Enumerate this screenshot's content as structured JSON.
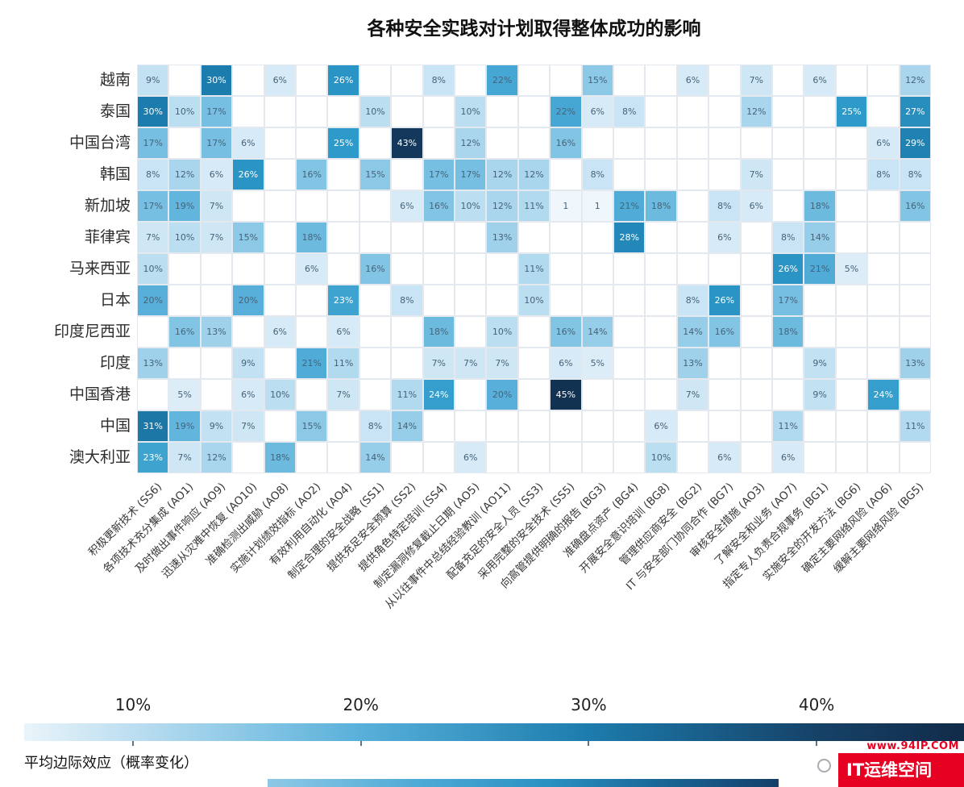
{
  "chart_data": {
    "type": "heatmap",
    "title": "各种安全实践对计划取得整体成功的影响",
    "rows": [
      "越南",
      "泰国",
      "中国台湾",
      "韩国",
      "新加坡",
      "菲律宾",
      "马来西亚",
      "日本",
      "印度尼西亚",
      "印度",
      "中国香港",
      "中国",
      "澳大利亚"
    ],
    "columns": [
      "积极更新技术 (SS6)",
      "各项技术充分集成 (AO1)",
      "及时做出事件响应 (AO9)",
      "迅速从灾难中恢复 (AO10)",
      "准确检测出威胁 (AO8)",
      "实施计划绩效指标 (AO2)",
      "有效利用自动化 (AO4)",
      "制定合理的安全战略 (SS1)",
      "提供充足安全预算 (SS2)",
      "提供角色特定培训 (SS4)",
      "制定漏洞修复截止日期 (AO5)",
      "从以往事件中总结经验教训 (AO11)",
      "配备充足的安全人员 (SS3)",
      "采用完整的安全技术 (SS5)",
      "向高管提供明确的报告 (BG3)",
      "准确盘点资产 (BG4)",
      "开展安全意识培训 (BG8)",
      "管理供应商安全 (BG2)",
      "IT 与安全部门协同合作 (BG7)",
      "审核安全措施 (AO3)",
      "了解安全和业务 (AO7)",
      "指定专人负责合规事务 (BG1)",
      "实施安全的开发方法 (BG6)",
      "确定主要网络风险 (AO6)",
      "缓解主要网络风险 (BG5)"
    ],
    "values": [
      [
        "9%",
        null,
        "30%",
        null,
        "6%",
        null,
        "26%",
        null,
        null,
        "8%",
        null,
        "22%",
        null,
        null,
        "15%",
        null,
        null,
        "6%",
        null,
        "7%",
        null,
        "6%",
        null,
        null,
        "12%"
      ],
      [
        "30%",
        "10%",
        "17%",
        null,
        null,
        null,
        null,
        "10%",
        null,
        null,
        "10%",
        null,
        null,
        "22%",
        "6%",
        "8%",
        null,
        null,
        null,
        "12%",
        null,
        null,
        "25%",
        null,
        "27%"
      ],
      [
        "17%",
        null,
        "17%",
        "6%",
        null,
        null,
        "25%",
        null,
        "43%",
        null,
        "12%",
        null,
        null,
        "16%",
        null,
        null,
        null,
        null,
        null,
        null,
        null,
        null,
        null,
        "6%",
        "29%"
      ],
      [
        "8%",
        "12%",
        "6%",
        "26%",
        null,
        "16%",
        null,
        "15%",
        null,
        "17%",
        "17%",
        "12%",
        "12%",
        null,
        "8%",
        null,
        null,
        null,
        null,
        "7%",
        null,
        null,
        null,
        "8%",
        "8%"
      ],
      [
        "17%",
        "19%",
        "7%",
        null,
        null,
        null,
        null,
        null,
        "6%",
        "16%",
        "10%",
        "12%",
        "11%",
        "1",
        "1",
        "21%",
        "18%",
        null,
        "8%",
        "6%",
        null,
        "18%",
        null,
        null,
        "16%"
      ],
      [
        "7%",
        "10%",
        "7%",
        "15%",
        null,
        "18%",
        null,
        null,
        null,
        null,
        null,
        "13%",
        null,
        null,
        null,
        "28%",
        null,
        null,
        "6%",
        null,
        "8%",
        "14%",
        null,
        null,
        null
      ],
      [
        "10%",
        null,
        null,
        null,
        null,
        "6%",
        null,
        "16%",
        null,
        null,
        null,
        null,
        "11%",
        null,
        null,
        null,
        null,
        null,
        null,
        null,
        "26%",
        "21%",
        "5%",
        null,
        null
      ],
      [
        "20%",
        null,
        null,
        "20%",
        null,
        null,
        "23%",
        null,
        "8%",
        null,
        null,
        null,
        "10%",
        null,
        null,
        null,
        null,
        "8%",
        "26%",
        null,
        "17%",
        null,
        null,
        null,
        null
      ],
      [
        null,
        "16%",
        "13%",
        null,
        "6%",
        null,
        "6%",
        null,
        null,
        "18%",
        null,
        "10%",
        null,
        "16%",
        "14%",
        null,
        null,
        "14%",
        "16%",
        null,
        "18%",
        null,
        null,
        null,
        null
      ],
      [
        "13%",
        null,
        null,
        "9%",
        null,
        "21%",
        "11%",
        null,
        null,
        "7%",
        "7%",
        "7%",
        null,
        "6%",
        "5%",
        null,
        null,
        "13%",
        null,
        null,
        null,
        "9%",
        null,
        null,
        "13%"
      ],
      [
        null,
        "5%",
        null,
        "6%",
        "10%",
        null,
        "7%",
        null,
        "11%",
        "24%",
        null,
        "20%",
        null,
        "45%",
        null,
        null,
        null,
        "7%",
        null,
        null,
        null,
        "9%",
        null,
        "24%",
        null
      ],
      [
        "31%",
        "19%",
        "9%",
        "7%",
        null,
        "15%",
        null,
        "8%",
        "14%",
        null,
        null,
        null,
        null,
        null,
        null,
        null,
        "6%",
        null,
        null,
        null,
        "11%",
        null,
        null,
        null,
        "11%"
      ],
      [
        "23%",
        "7%",
        "12%",
        null,
        "18%",
        null,
        null,
        "14%",
        null,
        null,
        "6%",
        null,
        null,
        null,
        null,
        null,
        "10%",
        null,
        "6%",
        null,
        "6%",
        null,
        null,
        null,
        null
      ]
    ],
    "color_stops": [
      {
        "value": 0,
        "color": "#f4f9fd"
      },
      {
        "value": 5,
        "color": "#dcedf8"
      },
      {
        "value": 10,
        "color": "#bcdef1"
      },
      {
        "value": 15,
        "color": "#8cc9e7"
      },
      {
        "value": 20,
        "color": "#58b0da"
      },
      {
        "value": 25,
        "color": "#2e9aca"
      },
      {
        "value": 30,
        "color": "#1c7cad"
      },
      {
        "value": 35,
        "color": "#1a5f88"
      },
      {
        "value": 40,
        "color": "#164268"
      },
      {
        "value": 47,
        "color": "#112b49"
      }
    ],
    "legend": {
      "ticks": [
        "10%",
        "20%",
        "30%",
        "40%"
      ],
      "tick_values": [
        10,
        20,
        30,
        40
      ],
      "label": "平均边际效应（概率变化）"
    }
  },
  "watermark": {
    "url": "www.94IP.COM",
    "brand": "IT运维空间",
    "color": "#e60021"
  }
}
